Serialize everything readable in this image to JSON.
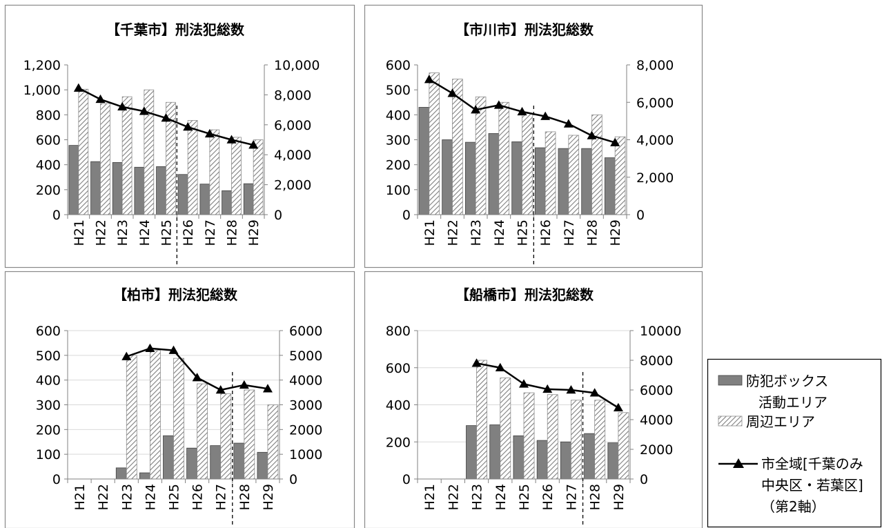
{
  "chart_data": [
    {
      "type": "bar",
      "title": "【千葉市】刑法犯総数",
      "categories": [
        "H21",
        "H22",
        "H23",
        "H24",
        "H25",
        "H26",
        "H27",
        "H28",
        "H29"
      ],
      "series": [
        {
          "name": "防犯ボックス活動エリア",
          "kind": "bar",
          "axis": "left",
          "values": [
            555,
            425,
            418,
            380,
            385,
            322,
            245,
            192,
            248
          ]
        },
        {
          "name": "周辺エリア",
          "kind": "bar-hatched",
          "axis": "left",
          "values": [
            1005,
            890,
            945,
            1000,
            900,
            755,
            680,
            620,
            600
          ]
        },
        {
          "name": "市全域[千葉のみ中央区・若葉区]（第2軸）",
          "kind": "line",
          "axis": "right",
          "values": [
            8450,
            7700,
            7200,
            6900,
            6450,
            5850,
            5400,
            5000,
            4650
          ]
        }
      ],
      "y_left": {
        "min": 0,
        "max": 1200,
        "ticks": [
          "0",
          "200",
          "400",
          "600",
          "800",
          "1,000",
          "1,200"
        ]
      },
      "y_right": {
        "min": 0,
        "max": 10000,
        "ticks": [
          "0",
          "2,000",
          "4,000",
          "6,000",
          "8,000",
          "10,000"
        ]
      },
      "divider_after": "H25",
      "grid": false
    },
    {
      "type": "bar",
      "title": "【市川市】刑法犯総数",
      "categories": [
        "H21",
        "H22",
        "H23",
        "H24",
        "H25",
        "H26",
        "H27",
        "H28",
        "H29"
      ],
      "series": [
        {
          "name": "防犯ボックス活動エリア",
          "kind": "bar",
          "axis": "left",
          "values": [
            430,
            300,
            290,
            325,
            292,
            268,
            265,
            265,
            228
          ]
        },
        {
          "name": "周辺エリア",
          "kind": "bar-hatched",
          "axis": "left",
          "values": [
            568,
            543,
            472,
            450,
            405,
            332,
            318,
            400,
            312
          ]
        },
        {
          "name": "市全域[千葉のみ中央区・若葉区]（第2軸）",
          "kind": "line",
          "axis": "right",
          "values": [
            7220,
            6480,
            5600,
            5850,
            5500,
            5250,
            4850,
            4220,
            3850
          ]
        }
      ],
      "y_left": {
        "min": 0,
        "max": 600,
        "ticks": [
          "0",
          "100",
          "200",
          "300",
          "400",
          "500",
          "600"
        ]
      },
      "y_right": {
        "min": 0,
        "max": 8000,
        "ticks": [
          "0",
          "2,000",
          "4,000",
          "6,000",
          "8,000"
        ]
      },
      "divider_after": "H25",
      "grid": false
    },
    {
      "type": "bar",
      "title": "【柏市】刑法犯総数",
      "categories": [
        "H21",
        "H22",
        "H23",
        "H24",
        "H25",
        "H26",
        "H27",
        "H28",
        "H29"
      ],
      "series": [
        {
          "name": "防犯ボックス活動エリア",
          "kind": "bar",
          "axis": "left",
          "values": [
            null,
            null,
            45,
            25,
            175,
            125,
            135,
            145,
            108
          ]
        },
        {
          "name": "周辺エリア",
          "kind": "bar-hatched",
          "axis": "left",
          "values": [
            null,
            null,
            500,
            520,
            488,
            385,
            345,
            360,
            300
          ]
        },
        {
          "name": "市全域[千葉のみ中央区・若葉区]（第2軸）",
          "kind": "line",
          "axis": "right",
          "values": [
            null,
            null,
            4950,
            5280,
            5200,
            4100,
            3600,
            3800,
            3650
          ]
        }
      ],
      "y_left": {
        "min": 0,
        "max": 600,
        "ticks": [
          "0",
          "100",
          "200",
          "300",
          "400",
          "500",
          "600"
        ]
      },
      "y_right": {
        "min": 0,
        "max": 6000,
        "ticks": [
          "0",
          "1000",
          "2000",
          "3000",
          "4000",
          "5000",
          "6000"
        ]
      },
      "divider_after": "H27",
      "grid": true
    },
    {
      "type": "bar",
      "title": "【船橋市】刑法犯総数",
      "categories": [
        "H21",
        "H22",
        "H23",
        "H24",
        "H25",
        "H26",
        "H27",
        "H28",
        "H29"
      ],
      "series": [
        {
          "name": "防犯ボックス活動エリア",
          "kind": "bar",
          "axis": "left",
          "values": [
            null,
            null,
            288,
            292,
            233,
            208,
            200,
            245,
            195
          ]
        },
        {
          "name": "周辺エリア",
          "kind": "bar-hatched",
          "axis": "left",
          "values": [
            null,
            null,
            640,
            545,
            465,
            455,
            425,
            425,
            358
          ]
        },
        {
          "name": "市全域[千葉のみ中央区・若葉区]（第2軸）",
          "kind": "line",
          "axis": "right",
          "values": [
            null,
            null,
            7800,
            7500,
            6400,
            6050,
            6000,
            5800,
            4800
          ]
        }
      ],
      "y_left": {
        "min": 0,
        "max": 800,
        "ticks": [
          "0",
          "200",
          "400",
          "600",
          "800"
        ]
      },
      "y_right": {
        "min": 0,
        "max": 10000,
        "ticks": [
          "0",
          "2000",
          "4000",
          "6000",
          "8000",
          "10000"
        ]
      },
      "divider_after": "H27",
      "grid": true
    }
  ],
  "legend": {
    "placement": "bottom-right",
    "items": [
      {
        "kind": "bar",
        "lines": [
          "防犯ボックス",
          "活動エリア"
        ]
      },
      {
        "kind": "bar-hatched",
        "lines": [
          "周辺エリア"
        ]
      },
      {
        "kind": "line",
        "lines": [
          "市全域[千葉のみ",
          "中央区・若葉区]",
          "（第2軸）"
        ]
      }
    ]
  },
  "colors": {
    "bar_fill": "#808080",
    "bar_stroke": "#404040",
    "hatch_stroke": "#7f7f7f",
    "line": "#000000",
    "panel_border": "#888888",
    "grid": "#d9d9d9",
    "axis": "#808080"
  }
}
